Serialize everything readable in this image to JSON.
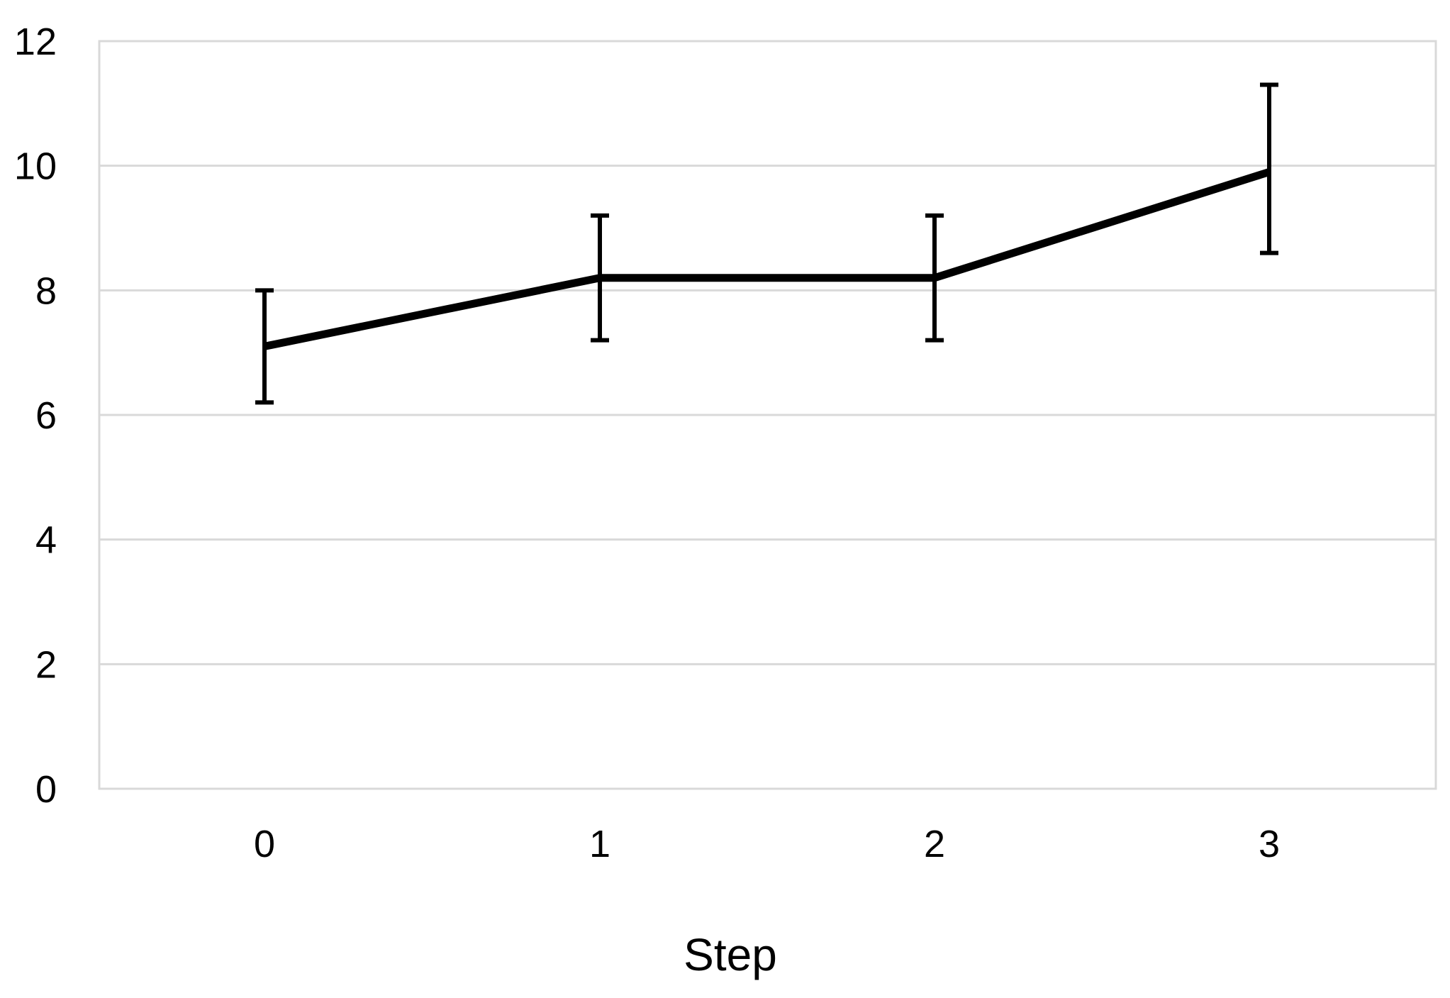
{
  "chart_data": {
    "type": "line",
    "title": "",
    "xlabel": "Step",
    "ylabel": "",
    "x": [
      0,
      1,
      2,
      3
    ],
    "x_tick_labels": [
      "0",
      "1",
      "2",
      "3"
    ],
    "y_ticks": [
      0,
      2,
      4,
      6,
      8,
      10,
      12
    ],
    "y_tick_labels": [
      "0",
      "2",
      "4",
      "6",
      "8",
      "10",
      "12"
    ],
    "ylim": [
      0,
      12
    ],
    "grid": true,
    "series": [
      {
        "values": [
          7.1,
          8.2,
          8.2,
          9.9
        ],
        "error_low": [
          6.2,
          7.2,
          7.2,
          8.6
        ],
        "error_high": [
          8.0,
          9.2,
          9.2,
          11.3
        ],
        "color": "#000000"
      }
    ],
    "colors": {
      "gridline": "#d9d9d9",
      "frame": "#d9d9d9",
      "line": "#000000"
    }
  }
}
